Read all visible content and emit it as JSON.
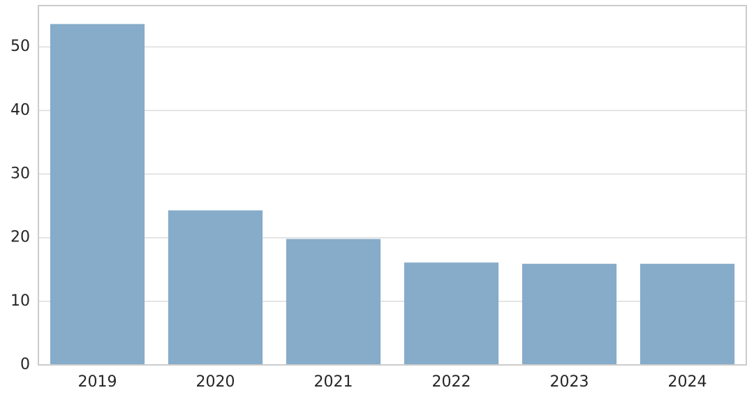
{
  "chart_data": {
    "type": "bar",
    "categories": [
      "2019",
      "2020",
      "2021",
      "2022",
      "2023",
      "2024"
    ],
    "values": [
      53.6,
      24.3,
      19.8,
      16.1,
      15.9,
      15.9
    ],
    "color": "#86acc9",
    "ylim": [
      0,
      56.5
    ],
    "yticks": [
      0,
      10,
      20,
      30,
      40,
      50
    ],
    "grid": true
  }
}
